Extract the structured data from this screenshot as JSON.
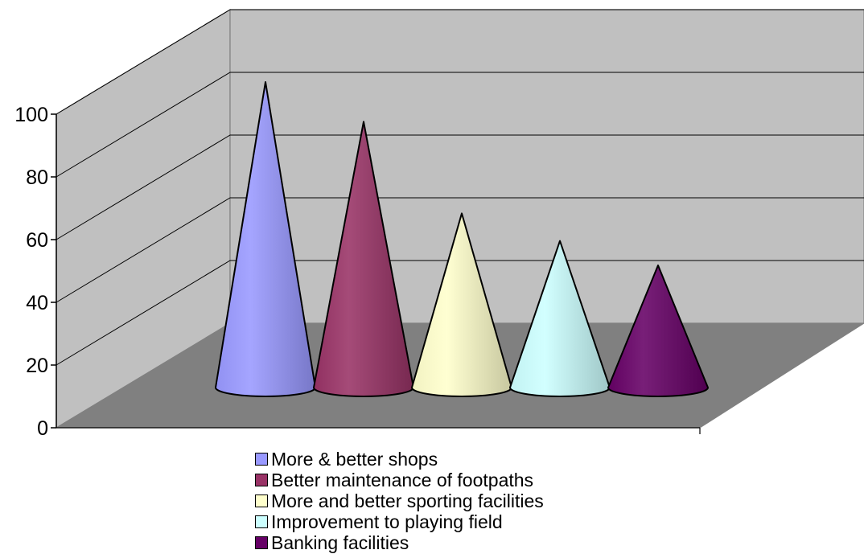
{
  "chart_data": {
    "type": "bar",
    "shape": "cone",
    "categories": [
      "More & better shops",
      "Better maintenance of footpaths",
      "More and better sporting facilities",
      "Improvement to playing field",
      "Banking facilities"
    ],
    "values": [
      100,
      87,
      57,
      48,
      40
    ],
    "colors": [
      "#9999ff",
      "#993366",
      "#ffffcc",
      "#ccffff",
      "#660066"
    ],
    "ylim": [
      0,
      100
    ],
    "yticks": [
      "0",
      "20",
      "40",
      "60",
      "80",
      "100"
    ],
    "grid": true,
    "legend_position": "bottom",
    "title": "",
    "xlabel": "",
    "ylabel": ""
  }
}
